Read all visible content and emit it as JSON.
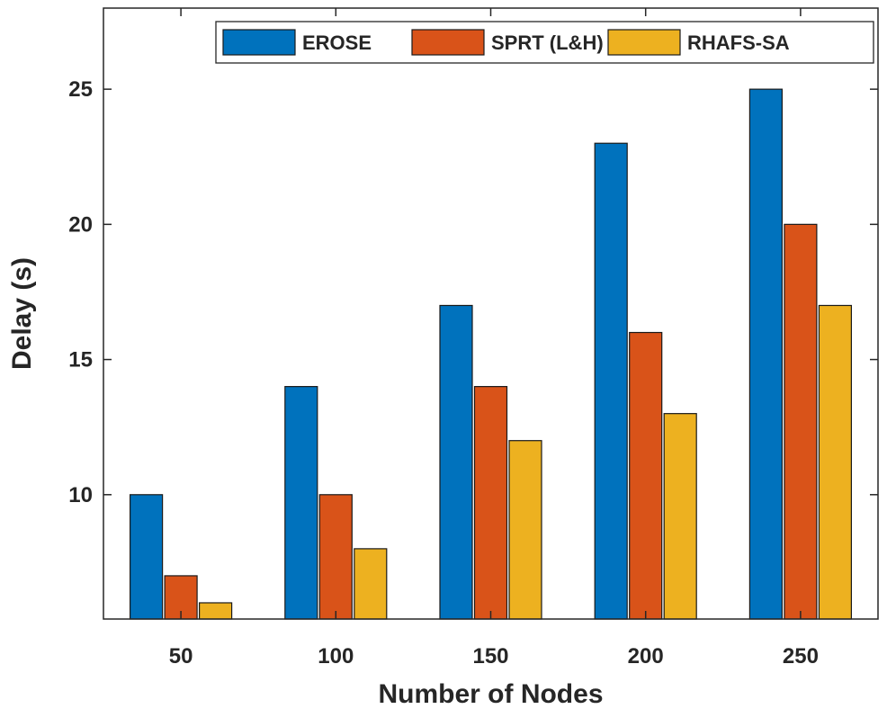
{
  "chart_data": {
    "type": "bar",
    "title": "",
    "xlabel": "Number of Nodes",
    "ylabel": "Delay (s)",
    "categories": [
      "50",
      "100",
      "150",
      "200",
      "250"
    ],
    "series": [
      {
        "name": "EROSE",
        "color": "#0072BD",
        "values": [
          10,
          14,
          17,
          23,
          25
        ]
      },
      {
        "name": "SPRT (L&H)",
        "color": "#D95319",
        "values": [
          7,
          10,
          14,
          16,
          20
        ]
      },
      {
        "name": "RHAFS-SA",
        "color": "#EDB120",
        "values": [
          6,
          8,
          12,
          13,
          17
        ]
      }
    ],
    "ylim": [
      5.4,
      28
    ],
    "yticks": [
      10,
      15,
      20,
      25
    ],
    "grid": false,
    "legend_position": "top-right"
  }
}
